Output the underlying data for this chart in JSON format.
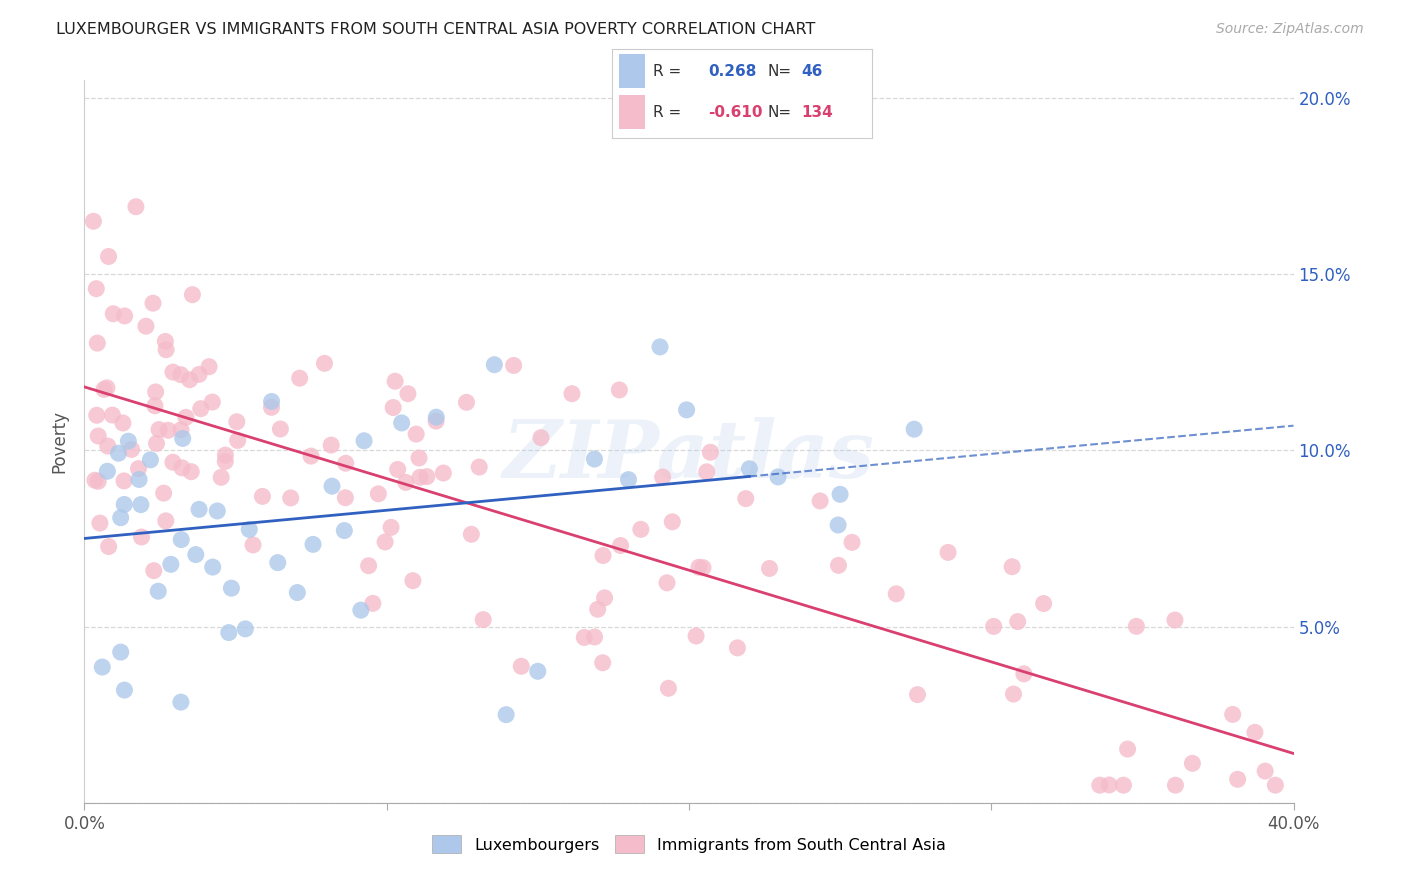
{
  "title": "LUXEMBOURGER VS IMMIGRANTS FROM SOUTH CENTRAL ASIA POVERTY CORRELATION CHART",
  "source": "Source: ZipAtlas.com",
  "ylabel": "Poverty",
  "xlim": [
    0.0,
    0.4
  ],
  "ylim": [
    0.0,
    0.205
  ],
  "x_ticks": [
    0.0,
    0.1,
    0.2,
    0.3,
    0.4
  ],
  "x_tick_labels": [
    "0.0%",
    "",
    "",
    "",
    "40.0%"
  ],
  "y_ticks": [
    0.0,
    0.05,
    0.1,
    0.15,
    0.2
  ],
  "y_tick_labels_right": [
    "",
    "5.0%",
    "10.0%",
    "15.0%",
    "20.0%"
  ],
  "blue_color": "#adc8ea",
  "pink_color": "#f5bccb",
  "blue_line_color": "#3060c0",
  "pink_line_color": "#d94070",
  "blue_text_color": "#3060c0",
  "pink_text_color": "#d94070",
  "watermark": "ZIPatlas",
  "background_color": "#ffffff",
  "grid_color": "#d8d8d8",
  "legend_r1": "R =",
  "legend_v1": "0.268",
  "legend_n1_label": "N=",
  "legend_n1": "46",
  "legend_r2": "R =",
  "legend_v2": "-0.610",
  "legend_n2_label": "N=",
  "legend_n2": "134",
  "bottom_legend_blue": "Luxembourgers",
  "bottom_legend_pink": "Immigrants from South Central Asia"
}
